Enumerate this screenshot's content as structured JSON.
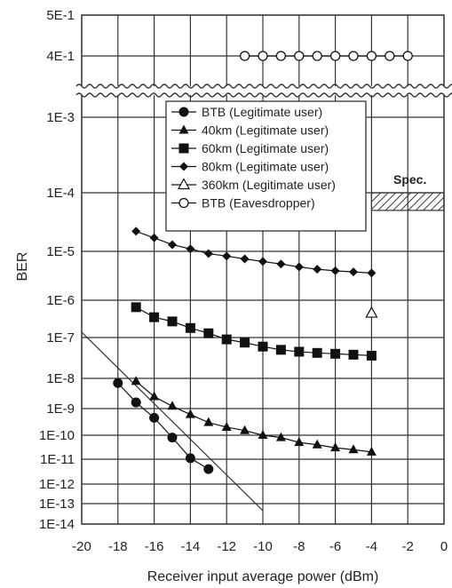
{
  "chart_data": {
    "type": "scatter",
    "title": "",
    "xlabel": "Receiver input average power (dBm)",
    "ylabel": "BER",
    "xlim": [
      -20,
      0
    ],
    "x_ticks": [
      -20,
      -18,
      -16,
      -14,
      -12,
      -10,
      -8,
      -6,
      -4,
      -2,
      0
    ],
    "y_scale": "log (broken axis)",
    "y_ticks": [
      "5E-1",
      "4E-1",
      "1E-3",
      "1E-4",
      "1E-5",
      "1E-6",
      "1E-7",
      "1E-8",
      "1E-9",
      "1E-10",
      "1E-11",
      "1E-12",
      "1E-13",
      "1E-14"
    ],
    "grid": true,
    "legend_position": "top-center",
    "annotation": "Spec.",
    "spec_band": [
      5e-05,
      0.0001
    ],
    "series": [
      {
        "name": "BTB (Legitimate user)",
        "marker": "filled-circle",
        "x": [
          -18,
          -17,
          -16,
          -15,
          -14,
          -13
        ],
        "y": [
          7e-09,
          1.6e-09,
          4.5e-10,
          8e-11,
          1.1e-11,
          4e-12
        ]
      },
      {
        "name": "40km (Legitimate user)",
        "marker": "filled-triangle",
        "x": [
          -17,
          -16,
          -15,
          -14,
          -13,
          -12,
          -11,
          -10,
          -9,
          -8,
          -7,
          -6,
          -5,
          -4
        ],
        "y": [
          8e-09,
          2.5e-09,
          1.2e-09,
          6e-10,
          3e-10,
          2e-10,
          1.5e-10,
          1e-10,
          8e-11,
          5e-11,
          4e-11,
          3e-11,
          2.5e-11,
          2e-11
        ]
      },
      {
        "name": "60km (Legitimate user)",
        "marker": "filled-square",
        "x": [
          -17,
          -16,
          -15,
          -14,
          -13,
          -12,
          -11,
          -10,
          -9,
          -8,
          -7,
          -6,
          -5,
          -4
        ],
        "y": [
          6.5e-07,
          3.5e-07,
          2.7e-07,
          1.8e-07,
          1.3e-07,
          9e-08,
          7.5e-08,
          6e-08,
          5e-08,
          4.5e-08,
          4.2e-08,
          4e-08,
          3.8e-08,
          3.6e-08
        ]
      },
      {
        "name": "80km (Legitimate user)",
        "marker": "filled-diamond",
        "x": [
          -17,
          -16,
          -15,
          -14,
          -13,
          -12,
          -11,
          -10,
          -9,
          -8,
          -7,
          -6,
          -5,
          -4
        ],
        "y": [
          2.2e-05,
          1.7e-05,
          1.3e-05,
          1.1e-05,
          9e-06,
          8e-06,
          7e-06,
          6.2e-06,
          5.5e-06,
          4.8e-06,
          4.3e-06,
          4e-06,
          3.8e-06,
          3.6e-06
        ]
      },
      {
        "name": "360km (Legitimate user)",
        "marker": "open-triangle",
        "x": [
          -4
        ],
        "y": [
          4.5e-07
        ]
      },
      {
        "name": "BTB (Eavesdropper)",
        "marker": "open-circle",
        "x": [
          -11,
          -10,
          -9,
          -8,
          -7,
          -6,
          -5,
          -4,
          -3,
          -2
        ],
        "y": [
          0.4,
          0.4,
          0.4,
          0.4,
          0.4,
          0.4,
          0.4,
          0.4,
          0.4,
          0.4
        ]
      }
    ]
  },
  "colors": {
    "marker": "#111111",
    "grid": "#333333",
    "spec_hatch": "#333333"
  }
}
